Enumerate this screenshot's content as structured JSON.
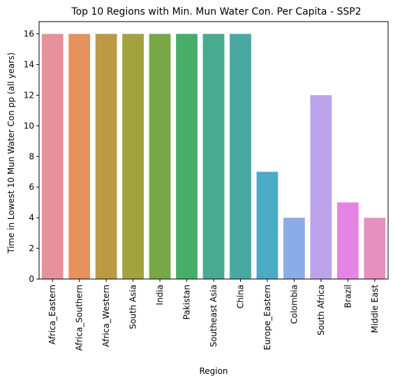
{
  "chart_data": {
    "type": "bar",
    "title": "Top 10 Regions with Min. Mun Water Con. Per Capita - SSP2",
    "xlabel": "Region",
    "ylabel": "Time in Lowest 10 Mun Water Con pp (all years)",
    "categories": [
      "Africa_Eastern",
      "Africa_Southern",
      "Africa_Western",
      "South Asia",
      "India",
      "Pakistan",
      "Southeast Asia",
      "China",
      "Europe_Eastern",
      "Colombia",
      "South Africa",
      "Brazil",
      "Middle East"
    ],
    "values": [
      16,
      16,
      16,
      16,
      16,
      16,
      16,
      16,
      7,
      4,
      12,
      5,
      4
    ],
    "colors": [
      "#e8919a",
      "#e6925f",
      "#bb9a43",
      "#a2a23f",
      "#77a845",
      "#46ae69",
      "#48aa8e",
      "#4aa8a3",
      "#4aabc6",
      "#8aade7",
      "#bba2ea",
      "#e684e6",
      "#e88fc1"
    ],
    "yticks": [
      0,
      2,
      4,
      6,
      8,
      10,
      12,
      14,
      16
    ],
    "ylim": [
      0,
      16.8
    ],
    "grid": false,
    "legend": "none"
  }
}
